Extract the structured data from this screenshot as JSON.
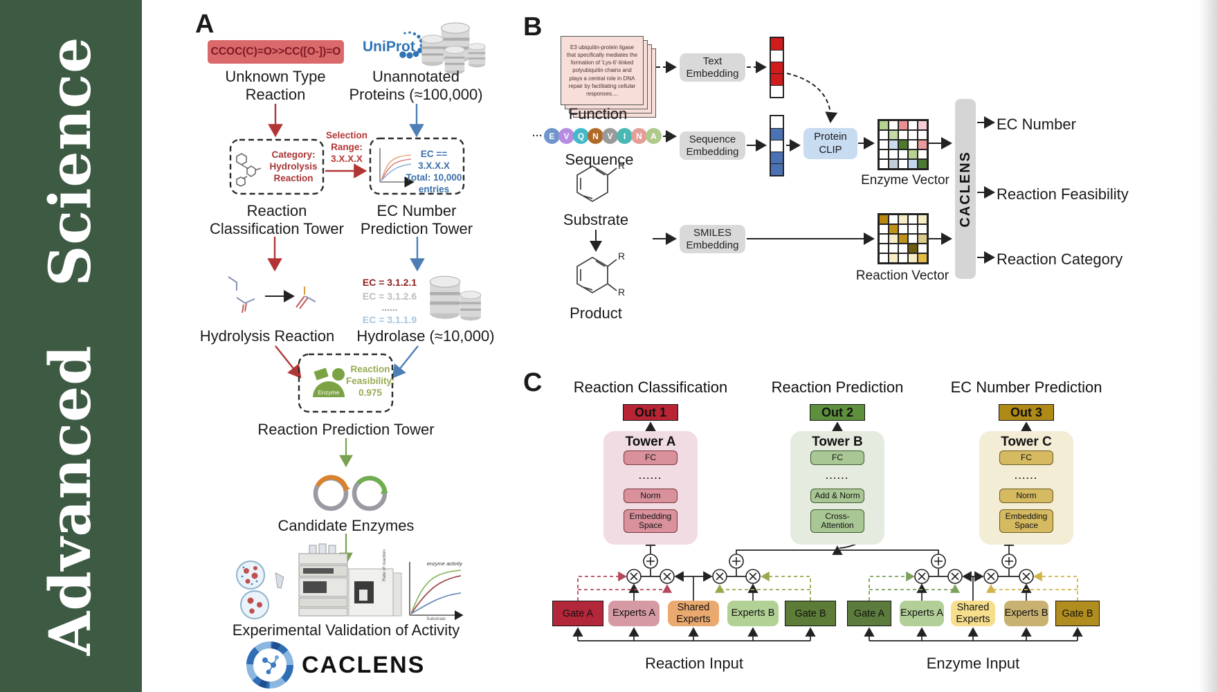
{
  "sidebar": {
    "journal": "Advanced  Science",
    "bg": "#3d5a43",
    "fg": "#ffffff"
  },
  "panelA": {
    "label": "A",
    "smiles": "CCOC(C)=O>>CC([O-])=O",
    "smiles_bg": "#d9696b",
    "smiles_fg": "#7c1822",
    "unknown_reaction": "Unknown Type\nReaction",
    "uniprot": "UniProt",
    "uniprot_color": "#2f74b5",
    "unannotated": "Unannotated\nProteins (≈100,000)",
    "selection_range": "Selection\nRange:\n3.X.X.X",
    "selection_color": "#b53535",
    "category": "Category:\nHydrolysis\nReaction",
    "category_color": "#a83535",
    "ec_box": "EC == 3.X.X.X\nTotal: 10,000\nentries",
    "ec_box_color": "#3a6fa8",
    "tower_classification": "Reaction\nClassification Tower",
    "tower_ec": "EC Number\nPrediction Tower",
    "ec_list": [
      {
        "text": "EC = 3.1.2.1",
        "color": "#8f1d1d"
      },
      {
        "text": "EC = 3.1.2.6",
        "color": "#bcbcbc"
      },
      {
        "text": "......",
        "color": "#9a9a9a"
      },
      {
        "text": "EC = 3.1.1.9",
        "color": "#a9c6de"
      }
    ],
    "hydrolysis": "Hydrolysis Reaction",
    "hydrolase": "Hydrolase (≈10,000)",
    "enzyme_label": "Enzyme",
    "feasibility": "Reaction\nFeasibility:\n0.975",
    "feasibility_color": "#96ab52",
    "tower_prediction": "Reaction Prediction Tower",
    "candidates": "Candidate Enzymes",
    "mini_chart": {
      "annotation": "enzyme activity",
      "ylabel": "Rate of reaction",
      "xlabel": "Substrate"
    },
    "validation": "Experimental Validation of Activity",
    "brand": "CACLENS"
  },
  "panelB": {
    "label": "B",
    "card_text": "E3 ubiquitin-protein ligase that specifically mediates the formation of 'Lys-6'-linked polyubiquitin chains and plays a central role in DNA repair by facilitating cellular responses....",
    "function_label": "Function",
    "text_embedding": "Text\nEmbedding",
    "sequence_embedding": "Sequence\nEmbedding",
    "smiles_embedding": "SMILES\nEmbedding",
    "ellipsis": "···",
    "sequence_label": "Sequence",
    "sequence": [
      {
        "letter": "E",
        "color": "#6f95cc"
      },
      {
        "letter": "V",
        "color": "#b48ce0"
      },
      {
        "letter": "Q",
        "color": "#45b9c9"
      },
      {
        "letter": "N",
        "color": "#b06a28"
      },
      {
        "letter": "V",
        "color": "#9a9a9a"
      },
      {
        "letter": "I",
        "color": "#49b8b4"
      },
      {
        "letter": "N",
        "color": "#e59e97"
      },
      {
        "letter": "A",
        "color": "#aec98b"
      }
    ],
    "substrate_label": "Substrate",
    "product_label": "Product",
    "r_label": "R",
    "protein_clip": "Protein\nCLIP",
    "protein_clip_bg": "#c7dbf1",
    "text_vector": [
      "#d01c1c",
      "#ffffff",
      "#d01c1c",
      "#d01c1c",
      "#ffffff"
    ],
    "seq_vector": [
      "#ffffff",
      "#4a72b4",
      "#ffffff",
      "#4a72b4",
      "#4a72b4"
    ],
    "enzyme_grid": [
      [
        "#b5d291",
        "#ffffff",
        "#e98f8f",
        "#ffffff",
        "#f5cdd3"
      ],
      [
        "#ffffff",
        "#c2dba4",
        "#ffffff",
        "#ffffff",
        "#ffffff"
      ],
      [
        "#ffffff",
        "#ccdcf0",
        "#4f7a2e",
        "#ffffff",
        "#ec9b9b"
      ],
      [
        "#ffffff",
        "#ffffff",
        "#ffffff",
        "#b5d291",
        "#ffffff"
      ],
      [
        "#ffffff",
        "#c3cdd8",
        "#ffffff",
        "#c3d6ee",
        "#4c7a30"
      ]
    ],
    "reaction_grid": [
      [
        "#b8880f",
        "#ffffff",
        "#f6edc6",
        "#ffffff",
        "#f6edc6"
      ],
      [
        "#ffffff",
        "#bf921b",
        "#ffffff",
        "#ffffff",
        "#ffffff"
      ],
      [
        "#ffffff",
        "#f6edc6",
        "#bf921b",
        "#ffffff",
        "#dcc98c"
      ],
      [
        "#ffffff",
        "#ffffff",
        "#ffffff",
        "#6f5c10",
        "#ffffff"
      ],
      [
        "#ffffff",
        "#f6edc6",
        "#ffffff",
        "#f6edc6",
        "#e3bc45"
      ]
    ],
    "enzyme_vector_label": "Enzyme Vector",
    "reaction_vector_label": "Reaction Vector",
    "caclens": "CACLENS",
    "caclens_bg": "#d5d5d5",
    "outputs": [
      "EC Number",
      "Reaction Feasibility",
      "Reaction Category"
    ]
  },
  "panelC": {
    "label": "C",
    "headers": [
      "Reaction Classification",
      "Reaction Prediction",
      "EC Number Prediction"
    ],
    "outs": [
      {
        "text": "Out 1",
        "bg": "#b82433"
      },
      {
        "text": "Out 2",
        "bg": "#5d8f3d"
      },
      {
        "text": "Out 3",
        "bg": "#b08a16"
      }
    ],
    "towers": [
      {
        "title": "Tower A",
        "top": "FC",
        "dots": "......",
        "mid": "Norm",
        "bottom": "Embedding\nSpace",
        "panel_bg": "#f0dce2",
        "box_bg": "#d9919c",
        "box_border": "#7a3540"
      },
      {
        "title": "Tower B",
        "top": "FC",
        "dots": "......",
        "mid": "Add & Norm",
        "bottom": "Cross-\nAttention",
        "panel_bg": "#e5ecdf",
        "box_bg": "#a9c795",
        "box_border": "#3e5a2e"
      },
      {
        "title": "Tower C",
        "top": "FC",
        "dots": "......",
        "mid": "Norm",
        "bottom": "Embedding\nSpace",
        "panel_bg": "#f3edd6",
        "box_bg": "#d5ba62",
        "box_border": "#6b5a1e"
      }
    ],
    "reaction_group": {
      "gate_a": "Gate A",
      "experts_a": "Experts A",
      "shared": "Shared\nExperts",
      "experts_b": "Experts B",
      "gate_b": "Gate B",
      "input_label": "Reaction Input",
      "colors": {
        "gate_a": "#b3273a",
        "experts_a": "#d59aa4",
        "shared": "#eaa96e",
        "experts_b": "#b2d194",
        "gate_b": "#5c7c38",
        "gate_a_dash": "#b5485a",
        "gate_b_dash": "#9aa84a"
      }
    },
    "enzyme_group": {
      "gate_a": "Gate A",
      "experts_a": "Experts A",
      "shared": "Shared\nExperts",
      "experts_b": "Experts B",
      "gate_b": "Gate B",
      "input_label": "Enzyme Input",
      "colors": {
        "gate_a": "#5c7c3d",
        "experts_a": "#b2cf98",
        "shared": "#f6de8d",
        "experts_b": "#c9b271",
        "gate_b": "#b08d1e",
        "gate_a_dash": "#7aa05a",
        "gate_b_dash": "#d0b44a"
      }
    }
  }
}
